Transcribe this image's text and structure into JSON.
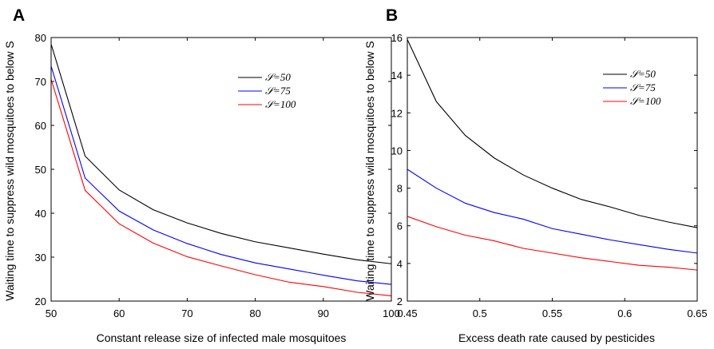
{
  "chart_data": [
    {
      "panel_label": "A",
      "type": "line",
      "xlabel": "Constant release size of infected male mosquitoes",
      "ylabel": "Waiting time to suppress wild mosquitoes to below S",
      "xlim": [
        50,
        100
      ],
      "ylim": [
        20,
        80
      ],
      "xticks": [
        50,
        60,
        70,
        80,
        90,
        100
      ],
      "yticks": [
        20,
        30,
        40,
        50,
        60,
        70,
        80
      ],
      "grid": false,
      "legend_position": "top-right",
      "x": [
        50,
        55,
        60,
        65,
        70,
        75,
        80,
        85,
        90,
        95,
        100
      ],
      "series": [
        {
          "name": "𝒮=50",
          "color": "#000000",
          "values": [
            78.5,
            53,
            45.3,
            40.8,
            37.8,
            35.4,
            33.5,
            32.1,
            30.7,
            29.4,
            28.5
          ]
        },
        {
          "name": "𝒮=75",
          "color": "#0000ff",
          "values": [
            73.5,
            48,
            40.5,
            36.2,
            33.1,
            30.6,
            28.7,
            27.3,
            25.9,
            24.6,
            23.8
          ]
        },
        {
          "name": "𝒮=100",
          "color": "#ff0000",
          "values": [
            70.5,
            45.2,
            37.6,
            33.2,
            30.1,
            28,
            26,
            24.3,
            23.3,
            22,
            21.2
          ]
        }
      ]
    },
    {
      "panel_label": "B",
      "type": "line",
      "xlabel": "Excess death rate caused by pesticides",
      "ylabel": "Waiting time to suppress wild mosquitoes to below S",
      "xlim": [
        0.45,
        0.65
      ],
      "ylim": [
        2,
        16
      ],
      "xticks": [
        0.45,
        0.5,
        0.55,
        0.6,
        0.65
      ],
      "xtick_labels": [
        "0.45",
        "0.5",
        "0.55",
        "0.6",
        "0.65"
      ],
      "yticks": [
        2,
        4,
        6,
        8,
        10,
        12,
        14,
        16
      ],
      "grid": false,
      "legend_position": "top-right",
      "x": [
        0.45,
        0.47,
        0.49,
        0.51,
        0.53,
        0.55,
        0.57,
        0.59,
        0.61,
        0.63,
        0.65
      ],
      "series": [
        {
          "name": "𝒮=50",
          "color": "#000000",
          "values": [
            15.9,
            12.6,
            10.8,
            9.6,
            8.7,
            8.0,
            7.4,
            7.0,
            6.55,
            6.2,
            5.9
          ]
        },
        {
          "name": "𝒮=75",
          "color": "#0000ff",
          "values": [
            9.0,
            8.0,
            7.2,
            6.7,
            6.35,
            5.85,
            5.55,
            5.25,
            5.0,
            4.75,
            4.55
          ]
        },
        {
          "name": "𝒮=100",
          "color": "#ff0000",
          "values": [
            6.5,
            5.95,
            5.5,
            5.2,
            4.8,
            4.55,
            4.3,
            4.1,
            3.9,
            3.8,
            3.65
          ]
        }
      ]
    }
  ]
}
